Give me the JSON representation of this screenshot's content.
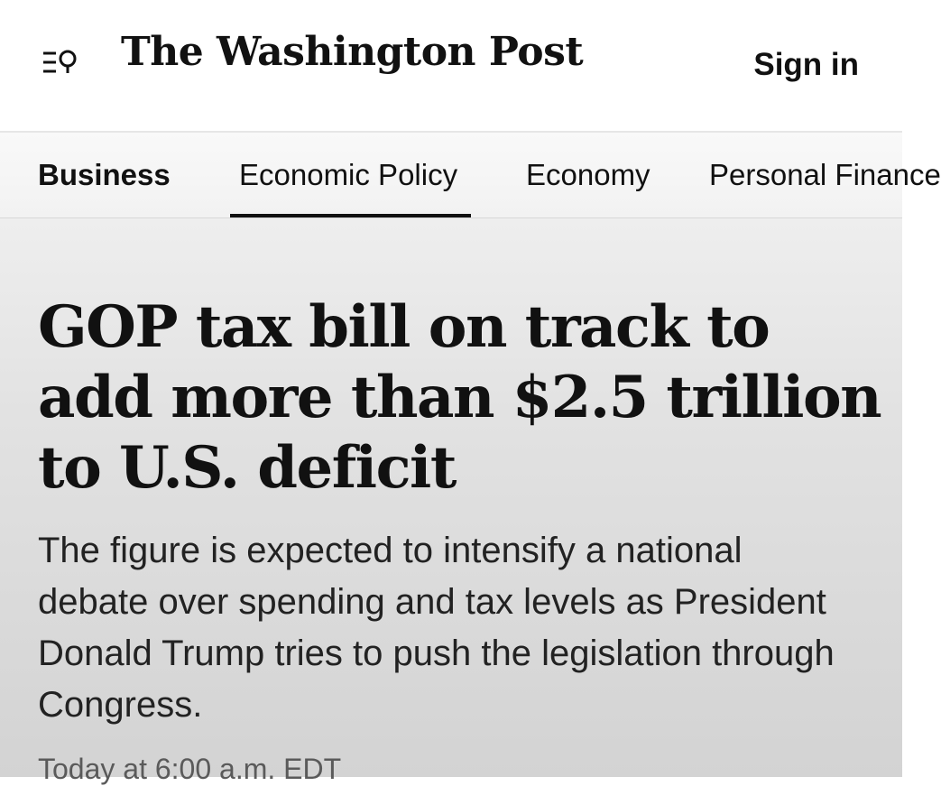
{
  "header": {
    "menu_search_icon": "menu-search-icon",
    "masthead": "The Washington Post",
    "sign_in_label": "Sign in"
  },
  "nav": {
    "section": "Business",
    "items": [
      {
        "label": "Economic Policy",
        "active": true
      },
      {
        "label": "Economy",
        "active": false
      },
      {
        "label": "Personal Finance",
        "active": false
      }
    ]
  },
  "article": {
    "headline": "GOP tax bill on track to add more than $2.5 trillion to U.S. deficit",
    "dek": "The figure is expected to intensify a national debate over spending and tax levels as President Donald Trump tries to push the legislation through Congress.",
    "timestamp": "Today at 6:00 a.m. EDT"
  }
}
